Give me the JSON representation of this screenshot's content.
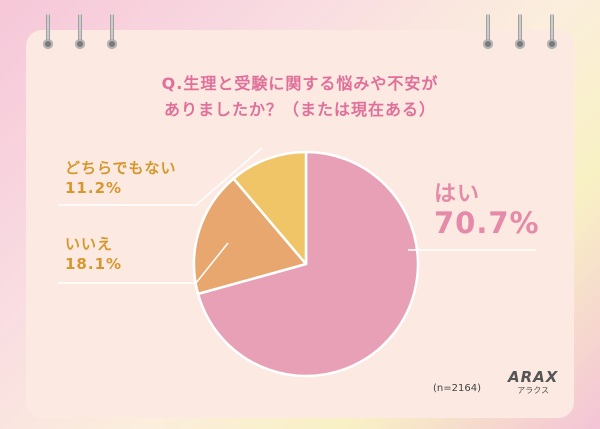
{
  "title_line1": "Q.生理と受験に関する悩みや不安が",
  "title_line2": "ありましたか？（または現在ある）",
  "sample_size": "(n=2164)",
  "logo": {
    "text": "ARAX",
    "subtext": "アラクス"
  },
  "chart_data": {
    "type": "pie",
    "slices": [
      {
        "label": "はい",
        "value": 70.7,
        "display": "70.7%",
        "color": "#e8a0b6"
      },
      {
        "label": "いいえ",
        "value": 18.1,
        "display": "18.1%",
        "color": "#e8a76e"
      },
      {
        "label": "どちらでもない",
        "value": 11.2,
        "display": "11.2%",
        "color": "#efc568"
      }
    ],
    "start_angle_deg": 0,
    "direction": "clockwise",
    "legend": "none"
  }
}
